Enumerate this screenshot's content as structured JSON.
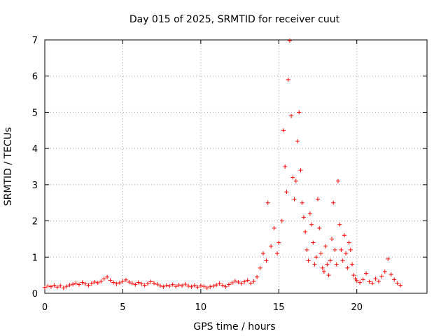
{
  "chart_data": {
    "type": "scatter",
    "title": "Day 015 of 2025, SRMTID for receiver cuut",
    "xlabel": "GPS time / hours",
    "ylabel": "SRMTID / TECUs",
    "xlim": [
      0,
      24.5
    ],
    "ylim": [
      0,
      7
    ],
    "xticks": [
      0,
      5,
      10,
      15,
      20
    ],
    "yticks": [
      0,
      1,
      2,
      3,
      4,
      5,
      6,
      7
    ],
    "grid": true,
    "marker": "plus",
    "series": [
      {
        "name": "SRMTID",
        "color": "#ff0000",
        "points": [
          [
            0.0,
            0.16
          ],
          [
            0.2,
            0.2
          ],
          [
            0.4,
            0.18
          ],
          [
            0.6,
            0.22
          ],
          [
            0.8,
            0.17
          ],
          [
            1.0,
            0.21
          ],
          [
            1.2,
            0.15
          ],
          [
            1.4,
            0.19
          ],
          [
            1.6,
            0.23
          ],
          [
            1.8,
            0.25
          ],
          [
            2.0,
            0.28
          ],
          [
            2.2,
            0.24
          ],
          [
            2.4,
            0.3
          ],
          [
            2.6,
            0.26
          ],
          [
            2.8,
            0.22
          ],
          [
            3.0,
            0.27
          ],
          [
            3.2,
            0.31
          ],
          [
            3.4,
            0.29
          ],
          [
            3.6,
            0.33
          ],
          [
            3.8,
            0.4
          ],
          [
            4.0,
            0.45
          ],
          [
            4.2,
            0.36
          ],
          [
            4.4,
            0.3
          ],
          [
            4.6,
            0.26
          ],
          [
            4.8,
            0.29
          ],
          [
            5.0,
            0.33
          ],
          [
            5.2,
            0.37
          ],
          [
            5.4,
            0.31
          ],
          [
            5.6,
            0.28
          ],
          [
            5.8,
            0.24
          ],
          [
            6.0,
            0.3
          ],
          [
            6.2,
            0.26
          ],
          [
            6.4,
            0.22
          ],
          [
            6.6,
            0.27
          ],
          [
            6.8,
            0.32
          ],
          [
            7.0,
            0.28
          ],
          [
            7.2,
            0.25
          ],
          [
            7.4,
            0.21
          ],
          [
            7.6,
            0.18
          ],
          [
            7.8,
            0.22
          ],
          [
            8.0,
            0.2
          ],
          [
            8.2,
            0.24
          ],
          [
            8.4,
            0.19
          ],
          [
            8.6,
            0.23
          ],
          [
            8.8,
            0.21
          ],
          [
            9.0,
            0.25
          ],
          [
            9.2,
            0.2
          ],
          [
            9.4,
            0.18
          ],
          [
            9.6,
            0.22
          ],
          [
            9.8,
            0.17
          ],
          [
            10.0,
            0.21
          ],
          [
            10.2,
            0.19
          ],
          [
            10.4,
            0.15
          ],
          [
            10.6,
            0.18
          ],
          [
            10.8,
            0.2
          ],
          [
            11.0,
            0.23
          ],
          [
            11.2,
            0.27
          ],
          [
            11.4,
            0.22
          ],
          [
            11.6,
            0.18
          ],
          [
            11.8,
            0.24
          ],
          [
            12.0,
            0.29
          ],
          [
            12.2,
            0.34
          ],
          [
            12.4,
            0.31
          ],
          [
            12.6,
            0.27
          ],
          [
            12.8,
            0.32
          ],
          [
            13.0,
            0.36
          ],
          [
            13.2,
            0.28
          ],
          [
            13.4,
            0.33
          ],
          [
            13.6,
            0.45
          ],
          [
            13.8,
            0.7
          ],
          [
            14.0,
            1.1
          ],
          [
            14.2,
            0.9
          ],
          [
            14.3,
            2.5
          ],
          [
            14.5,
            1.3
          ],
          [
            14.7,
            1.8
          ],
          [
            14.9,
            1.1
          ],
          [
            15.0,
            1.4
          ],
          [
            15.2,
            2.0
          ],
          [
            15.3,
            4.5
          ],
          [
            15.4,
            3.5
          ],
          [
            15.5,
            2.8
          ],
          [
            15.6,
            5.9
          ],
          [
            15.7,
            6.98
          ],
          [
            15.8,
            4.9
          ],
          [
            15.9,
            3.2
          ],
          [
            16.0,
            2.6
          ],
          [
            16.1,
            3.1
          ],
          [
            16.2,
            4.2
          ],
          [
            16.3,
            5.0
          ],
          [
            16.4,
            3.4
          ],
          [
            16.5,
            2.5
          ],
          [
            16.6,
            2.1
          ],
          [
            16.7,
            1.7
          ],
          [
            16.8,
            1.2
          ],
          [
            16.9,
            0.9
          ],
          [
            17.0,
            2.2
          ],
          [
            17.1,
            1.9
          ],
          [
            17.2,
            1.4
          ],
          [
            17.3,
            0.8
          ],
          [
            17.4,
            1.0
          ],
          [
            17.5,
            2.6
          ],
          [
            17.6,
            1.8
          ],
          [
            17.7,
            1.1
          ],
          [
            17.8,
            0.7
          ],
          [
            17.9,
            0.6
          ],
          [
            18.0,
            1.3
          ],
          [
            18.1,
            0.8
          ],
          [
            18.2,
            0.5
          ],
          [
            18.3,
            0.9
          ],
          [
            18.4,
            1.5
          ],
          [
            18.5,
            2.5
          ],
          [
            18.6,
            1.2
          ],
          [
            18.7,
            0.8
          ],
          [
            18.8,
            3.1
          ],
          [
            18.9,
            1.9
          ],
          [
            19.0,
            1.2
          ],
          [
            19.1,
            0.9
          ],
          [
            19.2,
            1.6
          ],
          [
            19.3,
            1.1
          ],
          [
            19.4,
            0.7
          ],
          [
            19.5,
            1.4
          ],
          [
            19.6,
            1.2
          ],
          [
            19.7,
            0.8
          ],
          [
            19.8,
            0.5
          ],
          [
            19.9,
            0.4
          ],
          [
            20.0,
            0.35
          ],
          [
            20.2,
            0.3
          ],
          [
            20.4,
            0.38
          ],
          [
            20.6,
            0.55
          ],
          [
            20.8,
            0.32
          ],
          [
            21.0,
            0.28
          ],
          [
            21.2,
            0.4
          ],
          [
            21.4,
            0.33
          ],
          [
            21.6,
            0.47
          ],
          [
            21.8,
            0.6
          ],
          [
            22.0,
            0.95
          ],
          [
            22.2,
            0.52
          ],
          [
            22.4,
            0.38
          ],
          [
            22.6,
            0.28
          ],
          [
            22.8,
            0.22
          ]
        ]
      }
    ]
  }
}
